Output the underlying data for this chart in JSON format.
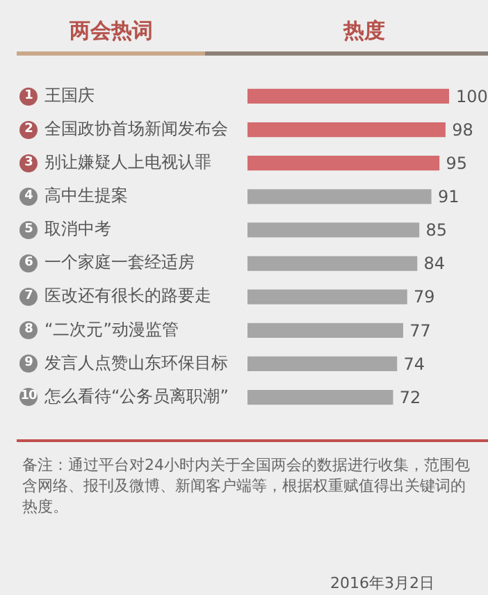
{
  "chart_data": {
    "type": "bar",
    "orientation": "horizontal",
    "ylabel": "两会热词",
    "xlabel": "热度",
    "categories": [
      "王国庆",
      "全国政协首场新闻发布会",
      "别让嫌疑人上电视认罪",
      "高中生提案",
      "取消中考",
      "一个家庭一套经适房",
      "医改还有很长的路要走",
      "“二次元”动漫监管",
      "发言人点赞山东环保目标",
      "怎么看待“公务员离职潮”"
    ],
    "values": [
      100,
      98,
      95,
      91,
      85,
      84,
      79,
      77,
      74,
      72
    ],
    "colors": [
      "#d46b6e",
      "#d46b6e",
      "#d46b6e",
      "#a6a6a6",
      "#a6a6a6",
      "#a6a6a6",
      "#a6a6a6",
      "#a6a6a6",
      "#a6a6a6",
      "#a6a6a6"
    ],
    "xlim": [
      0,
      100
    ],
    "tick_labels": "y",
    "data_labels": true,
    "annotations": [
      "1",
      "2",
      "3",
      "4",
      "5",
      "6",
      "7",
      "8",
      "9",
      "10",
      "备注：通过平台对24小时内关于全国两会的数据进行收集，范围包含网络、报刊及微博、新闻客户端等，根据权重赋值得出关键词的热度。",
      "2016年3月2日"
    ]
  }
}
